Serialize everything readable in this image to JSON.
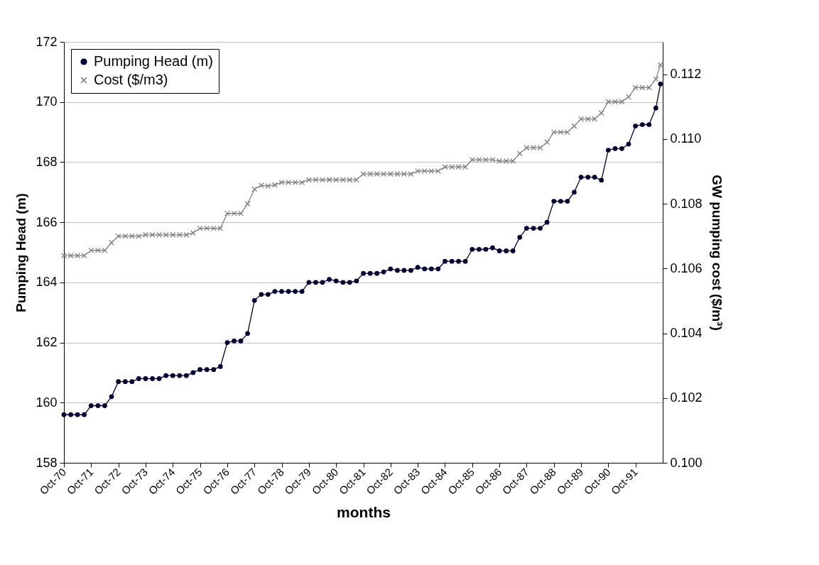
{
  "chart_data": {
    "type": "line",
    "xlabel": "months",
    "ylabel": "Pumping Head (m)",
    "y2label": "GW pumping cost ($/m³)",
    "x": [
      "1970-10",
      "1971-01",
      "1971-04",
      "1971-07",
      "1971-10",
      "1972-01",
      "1972-04",
      "1972-07",
      "1972-10",
      "1973-01",
      "1973-04",
      "1973-07",
      "1973-10",
      "1974-01",
      "1974-04",
      "1974-07",
      "1974-10",
      "1975-01",
      "1975-04",
      "1975-07",
      "1975-10",
      "1976-01",
      "1976-04",
      "1976-07",
      "1976-10",
      "1977-01",
      "1977-04",
      "1977-07",
      "1977-10",
      "1978-01",
      "1978-04",
      "1978-07",
      "1978-10",
      "1979-01",
      "1979-04",
      "1979-07",
      "1979-10",
      "1980-01",
      "1980-04",
      "1980-07",
      "1980-10",
      "1981-01",
      "1981-04",
      "1981-07",
      "1981-10",
      "1982-01",
      "1982-04",
      "1982-07",
      "1982-10",
      "1983-01",
      "1983-04",
      "1983-07",
      "1983-10",
      "1984-01",
      "1984-04",
      "1984-07",
      "1984-10",
      "1985-01",
      "1985-04",
      "1985-07",
      "1985-10",
      "1986-01",
      "1986-04",
      "1986-07",
      "1986-10",
      "1987-01",
      "1987-04",
      "1987-07",
      "1987-10",
      "1988-01",
      "1988-04",
      "1988-07",
      "1988-10",
      "1989-01",
      "1989-04",
      "1989-07",
      "1989-10",
      "1990-01",
      "1990-04",
      "1990-07",
      "1990-10",
      "1991-01",
      "1991-04",
      "1991-07",
      "1991-10",
      "1992-01",
      "1992-04",
      "1992-07",
      "1992-09"
    ],
    "series": [
      {
        "name": "Pumping Head (m)",
        "color": "#000033",
        "marker": "circle",
        "values": [
          159.6,
          159.6,
          159.6,
          159.6,
          159.9,
          159.9,
          159.9,
          160.2,
          160.7,
          160.7,
          160.7,
          160.8,
          160.8,
          160.8,
          160.8,
          160.9,
          160.9,
          160.9,
          160.9,
          161.0,
          161.1,
          161.1,
          161.1,
          161.2,
          162.0,
          162.05,
          162.05,
          162.3,
          163.4,
          163.6,
          163.6,
          163.7,
          163.7,
          163.7,
          163.7,
          163.7,
          164.0,
          164.0,
          164.0,
          164.1,
          164.05,
          164.0,
          164.0,
          164.05,
          164.3,
          164.3,
          164.3,
          164.35,
          164.45,
          164.4,
          164.4,
          164.4,
          164.5,
          164.45,
          164.45,
          164.45,
          164.7,
          164.7,
          164.7,
          164.7,
          165.1,
          165.1,
          165.1,
          165.15,
          165.05,
          165.05,
          165.05,
          165.5,
          165.8,
          165.8,
          165.8,
          166.0,
          166.7,
          166.7,
          166.7,
          167.0,
          167.5,
          167.5,
          167.5,
          167.4,
          168.4,
          168.45,
          168.45,
          168.6,
          169.2,
          169.25,
          169.25,
          169.8,
          170.6
        ]
      },
      {
        "name": "Cost ($/m3)",
        "color": "#808080",
        "marker": "cross",
        "axis": "y2",
        "values": [
          0.1064,
          0.1064,
          0.1064,
          0.1064,
          0.10656,
          0.10656,
          0.10656,
          0.1068,
          0.107,
          0.107,
          0.107,
          0.107,
          0.10704,
          0.10704,
          0.10704,
          0.10704,
          0.10704,
          0.10704,
          0.10704,
          0.1071,
          0.10724,
          0.10724,
          0.10724,
          0.10724,
          0.1077,
          0.1077,
          0.1077,
          0.108,
          0.10845,
          0.10857,
          0.10855,
          0.10858,
          0.10866,
          0.10866,
          0.10866,
          0.10866,
          0.10874,
          0.10874,
          0.10874,
          0.10874,
          0.10874,
          0.10874,
          0.10874,
          0.10874,
          0.10892,
          0.10892,
          0.10892,
          0.10892,
          0.10892,
          0.10892,
          0.10892,
          0.10892,
          0.10901,
          0.10901,
          0.10901,
          0.10901,
          0.10914,
          0.10914,
          0.10914,
          0.10914,
          0.10936,
          0.10936,
          0.10936,
          0.10936,
          0.10932,
          0.10932,
          0.10932,
          0.10955,
          0.10973,
          0.10973,
          0.10973,
          0.1099,
          0.11021,
          0.11021,
          0.11021,
          0.1104,
          0.11062,
          0.11062,
          0.11062,
          0.1108,
          0.11115,
          0.11115,
          0.11115,
          0.1113,
          0.11159,
          0.11159,
          0.11159,
          0.11185,
          0.11229
        ]
      }
    ],
    "xlim": [
      "1970-10",
      "1992-10"
    ],
    "xticks": [
      {
        "value": "1970-10",
        "label": "Oct-70"
      },
      {
        "value": "1971-10",
        "label": "Oct-71"
      },
      {
        "value": "1972-10",
        "label": "Oct-72"
      },
      {
        "value": "1973-10",
        "label": "Oct-73"
      },
      {
        "value": "1974-10",
        "label": "Oct-74"
      },
      {
        "value": "1975-10",
        "label": "Oct-75"
      },
      {
        "value": "1976-10",
        "label": "Oct-76"
      },
      {
        "value": "1977-10",
        "label": "Oct-77"
      },
      {
        "value": "1978-10",
        "label": "Oct-78"
      },
      {
        "value": "1979-10",
        "label": "Oct-79"
      },
      {
        "value": "1980-10",
        "label": "Oct-80"
      },
      {
        "value": "1981-10",
        "label": "Oct-81"
      },
      {
        "value": "1982-10",
        "label": "Oct-82"
      },
      {
        "value": "1983-10",
        "label": "Oct-83"
      },
      {
        "value": "1984-10",
        "label": "Oct-84"
      },
      {
        "value": "1985-10",
        "label": "Oct-85"
      },
      {
        "value": "1986-10",
        "label": "Oct-86"
      },
      {
        "value": "1987-10",
        "label": "Oct-87"
      },
      {
        "value": "1988-10",
        "label": "Oct-88"
      },
      {
        "value": "1989-10",
        "label": "Oct-89"
      },
      {
        "value": "1990-10",
        "label": "Oct-90"
      },
      {
        "value": "1991-10",
        "label": "Oct-91"
      }
    ],
    "ylim": [
      158,
      172
    ],
    "yticks": [
      158,
      160,
      162,
      164,
      166,
      168,
      170,
      172
    ],
    "y2lim": [
      0.1,
      0.113
    ],
    "y2ticks": [
      {
        "value": 0.1,
        "label": "0.100"
      },
      {
        "value": 0.102,
        "label": "0.102"
      },
      {
        "value": 0.104,
        "label": "0.104"
      },
      {
        "value": 0.106,
        "label": "0.106"
      },
      {
        "value": 0.108,
        "label": "0.108"
      },
      {
        "value": 0.11,
        "label": "0.110"
      },
      {
        "value": 0.112,
        "label": "0.112"
      }
    ],
    "grid": "y",
    "legend": "top left",
    "line_style": "solid"
  }
}
